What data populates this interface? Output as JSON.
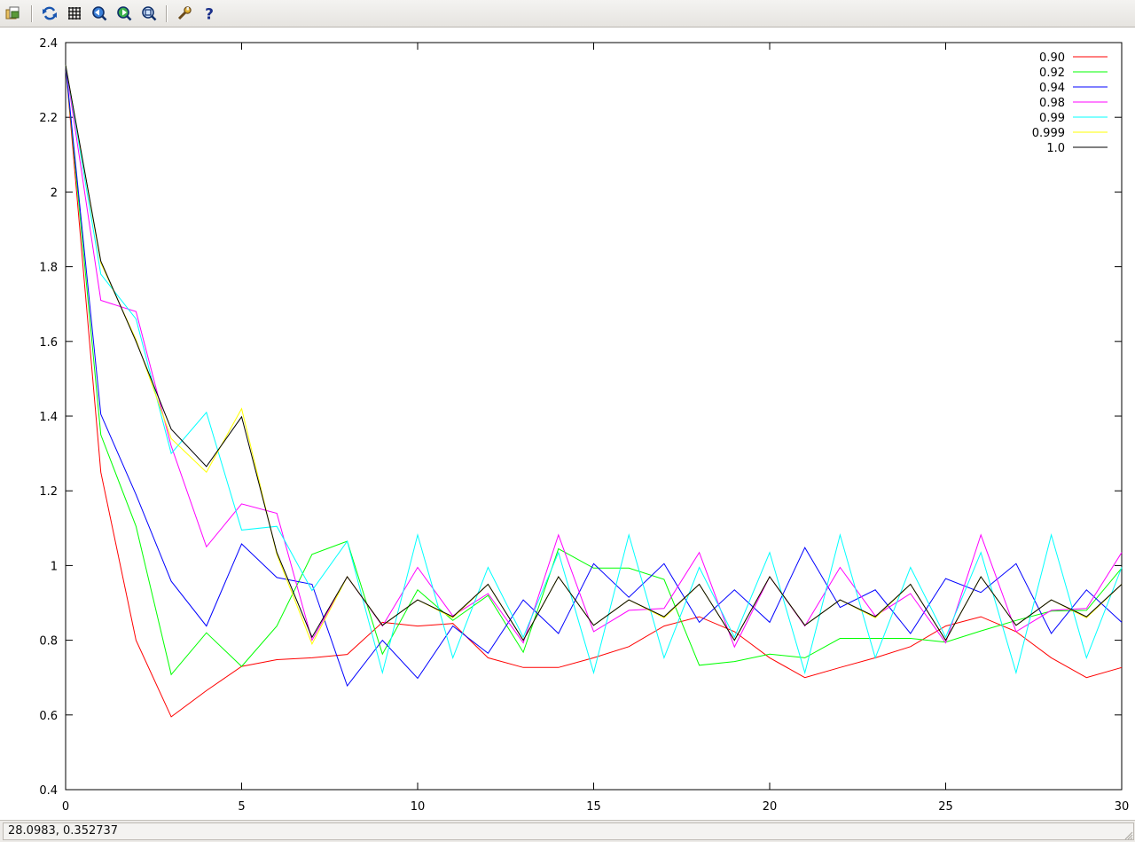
{
  "toolbar": {
    "buttons": [
      {
        "icon": "export-icon",
        "title": "Export"
      },
      {
        "icon": "replot-icon",
        "title": "Replot"
      },
      {
        "icon": "grid-icon",
        "title": "Show grid"
      },
      {
        "icon": "zoom-previous-icon",
        "title": "Previous zoom"
      },
      {
        "icon": "zoom-next-icon",
        "title": "Next zoom"
      },
      {
        "icon": "autoscale-icon",
        "title": "Autoscale"
      },
      {
        "icon": "preferences-icon",
        "title": "Preferences"
      },
      {
        "icon": "help-icon",
        "title": "Help"
      }
    ]
  },
  "status": {
    "coordinates": "28.0983,  0.352737"
  },
  "chart_data": {
    "type": "line",
    "title": "",
    "xlabel": "",
    "ylabel": "",
    "xlim": [
      0,
      30
    ],
    "ylim": [
      0.4,
      2.4
    ],
    "xticks": [
      "0",
      "5",
      "10",
      "15",
      "20",
      "25",
      "30"
    ],
    "yticks": [
      "0.4",
      "0.6",
      "0.8",
      "1",
      "1.2",
      "1.4",
      "1.6",
      "1.8",
      "2",
      "2.2",
      "2.4"
    ],
    "grid": false,
    "legend_position": "top-right",
    "x": [
      0,
      1,
      2,
      3,
      4,
      5,
      6,
      7,
      8,
      9,
      10,
      11,
      12,
      13,
      14,
      15,
      16,
      17,
      18,
      19,
      20,
      21,
      22,
      23,
      24,
      25,
      26,
      27,
      28,
      29,
      30
    ],
    "series": [
      {
        "name": "0.90",
        "color": "#ff0000",
        "values": [
          2.34,
          1.25,
          0.8,
          0.595,
          0.665,
          0.73,
          0.748,
          0.753,
          0.762,
          0.848,
          0.838,
          0.845,
          0.753,
          0.727,
          0.727,
          0.753,
          0.783,
          0.838,
          0.863,
          0.823,
          0.753,
          0.7,
          0.727,
          0.753,
          0.783,
          0.838,
          0.863,
          0.823,
          0.753,
          0.7,
          0.727
        ]
      },
      {
        "name": "0.92",
        "color": "#00ff00",
        "values": [
          2.34,
          1.35,
          1.105,
          0.708,
          0.82,
          0.73,
          0.838,
          1.03,
          1.065,
          0.763,
          0.935,
          0.853,
          0.92,
          0.768,
          1.045,
          0.993,
          0.993,
          0.963,
          0.733,
          0.743,
          0.763,
          0.753,
          0.805,
          0.805,
          0.805,
          0.795,
          0.825,
          0.853,
          0.878,
          0.88,
          0.993
        ]
      },
      {
        "name": "0.94",
        "color": "#0000ff",
        "values": [
          2.34,
          1.405,
          1.19,
          0.958,
          0.838,
          1.058,
          0.968,
          0.95,
          0.678,
          0.8,
          0.698,
          0.838,
          0.765,
          0.908,
          0.818,
          1.005,
          0.915,
          1.005,
          0.848,
          0.935,
          0.848,
          1.048,
          0.888,
          0.935,
          0.818,
          0.965,
          0.928,
          1.005,
          0.818,
          0.935,
          0.848
        ]
      },
      {
        "name": "0.98",
        "color": "#ff00ff",
        "values": [
          2.34,
          1.71,
          1.68,
          1.32,
          1.05,
          1.165,
          1.14,
          0.8,
          0.97,
          0.838,
          0.995,
          0.865,
          0.925,
          0.793,
          1.082,
          0.823,
          0.88,
          0.885,
          1.035,
          0.782,
          0.97,
          0.838,
          0.995,
          0.865,
          0.925,
          0.793,
          1.082,
          0.823,
          0.88,
          0.885,
          1.035
        ]
      },
      {
        "name": "0.99",
        "color": "#00ffff",
        "values": [
          2.34,
          1.78,
          1.66,
          1.3,
          1.41,
          1.095,
          1.105,
          0.933,
          1.065,
          0.713,
          1.082,
          0.753,
          0.995,
          0.808,
          1.035,
          0.713,
          1.082,
          0.753,
          0.995,
          0.808,
          1.035,
          0.713,
          1.082,
          0.753,
          0.995,
          0.808,
          1.035,
          0.713,
          1.082,
          0.753,
          0.995
        ]
      },
      {
        "name": "0.999",
        "color": "#ffff00",
        "values": [
          2.34,
          1.81,
          1.605,
          1.34,
          1.25,
          1.42,
          1.03,
          0.79,
          0.97,
          0.84,
          0.908,
          0.86,
          0.95,
          0.8,
          0.97,
          0.84,
          0.908,
          0.86,
          0.95,
          0.8,
          0.97,
          0.84,
          0.908,
          0.86,
          0.95,
          0.8,
          0.97,
          0.84,
          0.908,
          0.86,
          0.95
        ]
      },
      {
        "name": "1.0",
        "color": "#000000",
        "values": [
          2.34,
          1.815,
          1.6,
          1.365,
          1.265,
          1.398,
          1.035,
          0.808,
          0.97,
          0.84,
          0.908,
          0.863,
          0.95,
          0.8,
          0.97,
          0.84,
          0.908,
          0.863,
          0.95,
          0.8,
          0.97,
          0.84,
          0.908,
          0.863,
          0.95,
          0.8,
          0.97,
          0.84,
          0.908,
          0.863,
          0.95
        ]
      }
    ]
  }
}
